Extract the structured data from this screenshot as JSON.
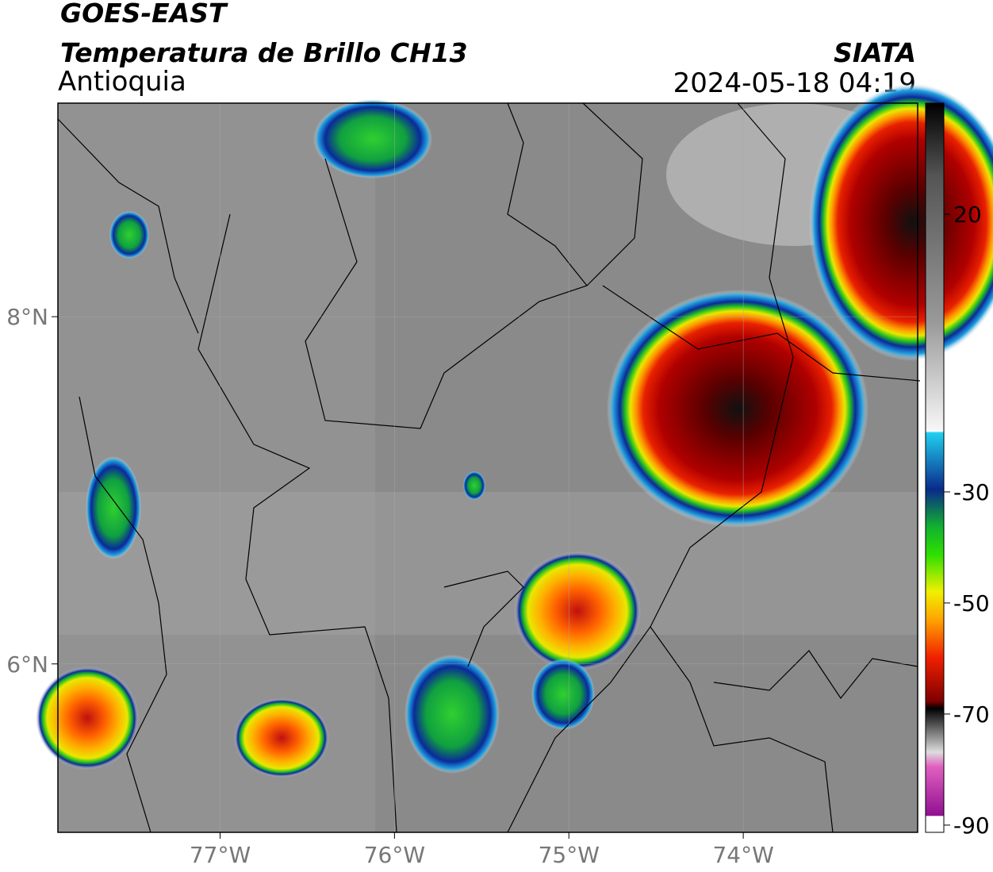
{
  "header": {
    "satellite": "GOES-EAST",
    "product": "Temperatura de Brillo CH13",
    "region": "Antioquia",
    "source": "SIATA",
    "datetime": "2024-05-18 04:19"
  },
  "map": {
    "xlim": [
      -77.93,
      -73.0
    ],
    "ylim": [
      5.03,
      9.23
    ],
    "xticks": [
      {
        "value": -77,
        "label": "77°W"
      },
      {
        "value": -76,
        "label": "76°W"
      },
      {
        "value": -75,
        "label": "75°W"
      },
      {
        "value": -74,
        "label": "74°W"
      }
    ],
    "yticks": [
      {
        "value": 6,
        "label": "6°N"
      },
      {
        "value": 8,
        "label": "8°N"
      }
    ]
  },
  "colorbar": {
    "lim": [
      -91.3,
      40
    ],
    "ticks": [
      20,
      -30,
      -50,
      -70,
      -90
    ]
  }
}
